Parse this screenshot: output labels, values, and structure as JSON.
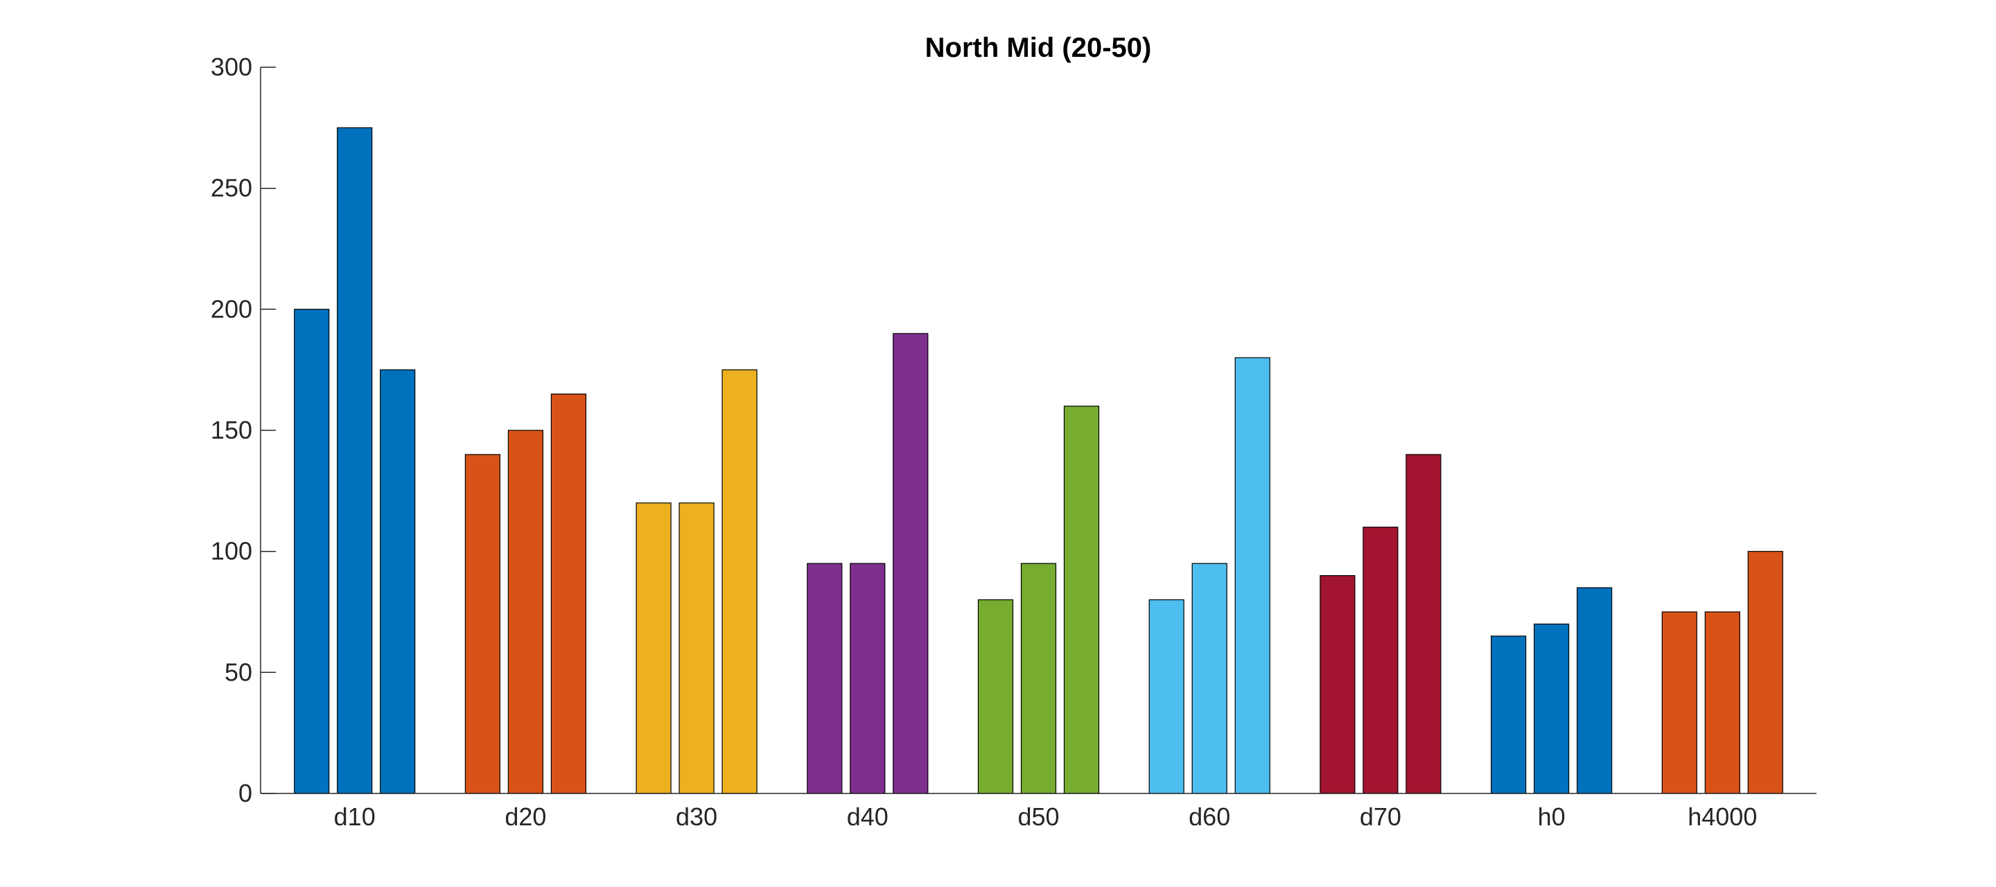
{
  "chart_data": {
    "type": "bar",
    "title": "North Mid (20-50)",
    "xlabel": "",
    "ylabel": "",
    "categories": [
      "d10",
      "d20",
      "d30",
      "d40",
      "d50",
      "d60",
      "d70",
      "h0",
      "h4000"
    ],
    "series_per_category": 3,
    "values": [
      [
        200,
        275,
        175
      ],
      [
        140,
        150,
        165
      ],
      [
        120,
        120,
        175
      ],
      [
        95,
        95,
        190
      ],
      [
        80,
        95,
        160
      ],
      [
        80,
        95,
        180
      ],
      [
        90,
        110,
        140
      ],
      [
        65,
        70,
        85
      ],
      [
        75,
        75,
        100
      ]
    ],
    "colors": [
      "#0072BD",
      "#D95319",
      "#EDB120",
      "#7E2F8E",
      "#77AC30",
      "#4DBEEE",
      "#A2142F",
      "#0072BD",
      "#D95319"
    ],
    "ylim": [
      0,
      300
    ],
    "yticks": [
      0,
      50,
      100,
      150,
      200,
      250,
      300
    ],
    "grid": false,
    "legend": "none"
  }
}
